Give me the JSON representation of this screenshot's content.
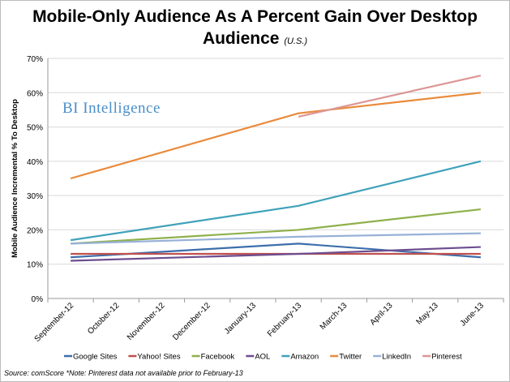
{
  "chart_data": {
    "type": "line",
    "title": "Mobile-Only Audience As A Percent Gain Over Desktop Audience",
    "subtitle": "(U.S.)",
    "ylabel": "Mobile Audience Incremental % To Desktop",
    "xlabel": "",
    "ylim": [
      0,
      70
    ],
    "yticks": [
      "0%",
      "10%",
      "20%",
      "30%",
      "40%",
      "50%",
      "60%",
      "70%"
    ],
    "grid": true,
    "legend": "bottom",
    "categories": [
      "September-12",
      "October-12",
      "November-12",
      "December-12",
      "January-13",
      "February-13",
      "March-13",
      "April-13",
      "May-13",
      "June-13"
    ],
    "series": [
      {
        "name": "Google Sites",
        "color": "#3d6eab",
        "values": [
          12,
          null,
          null,
          null,
          null,
          16,
          null,
          null,
          null,
          12
        ]
      },
      {
        "name": "Yahoo! Sites",
        "color": "#c0504d",
        "values": [
          13,
          null,
          null,
          null,
          null,
          13,
          null,
          null,
          null,
          13
        ]
      },
      {
        "name": "Facebook",
        "color": "#8fb04b",
        "values": [
          16,
          null,
          null,
          null,
          null,
          20,
          null,
          null,
          null,
          26
        ]
      },
      {
        "name": "AOL",
        "color": "#6d4d8f",
        "values": [
          11,
          null,
          null,
          null,
          null,
          13,
          null,
          null,
          null,
          15
        ]
      },
      {
        "name": "Amazon",
        "color": "#3fa2b9",
        "values": [
          17,
          null,
          null,
          null,
          null,
          27,
          null,
          null,
          null,
          40
        ]
      },
      {
        "name": "Twitter",
        "color": "#e98a3a",
        "values": [
          35,
          null,
          null,
          null,
          null,
          54,
          null,
          null,
          null,
          60
        ]
      },
      {
        "name": "LinkedIn",
        "color": "#98b1d8",
        "values": [
          16,
          null,
          null,
          null,
          null,
          18,
          null,
          null,
          null,
          19
        ]
      },
      {
        "name": "Pinterest",
        "color": "#dc9694",
        "values": [
          null,
          null,
          null,
          null,
          null,
          53,
          null,
          null,
          null,
          65
        ]
      }
    ],
    "watermark": "BI Intelligence",
    "source": "Source: comScore *Note: Pinterest data not available prior to February-13"
  }
}
